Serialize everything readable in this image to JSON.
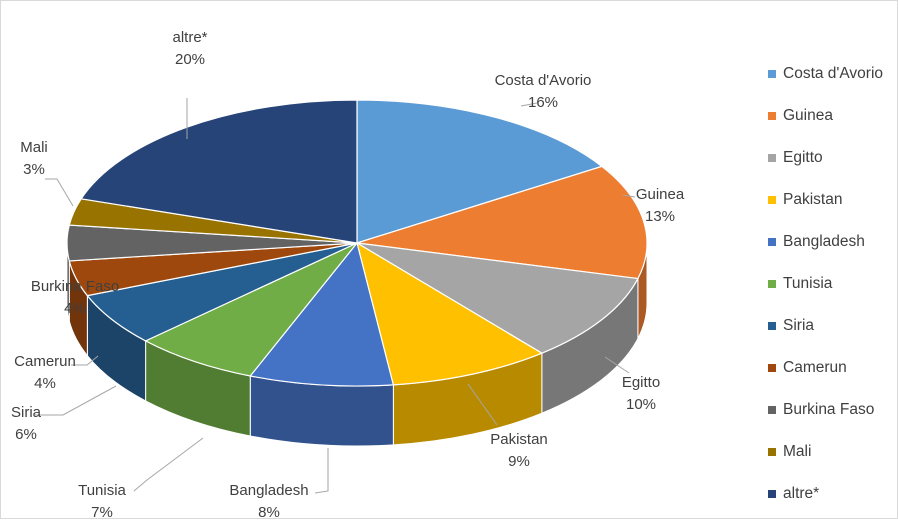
{
  "chart_data": {
    "type": "pie",
    "title": "",
    "categories": [
      "Costa d'Avorio",
      "Guinea",
      "Egitto",
      "Pakistan",
      "Bangladesh",
      "Tunisia",
      "Siria",
      "Camerun",
      "Burkina Faso",
      "Mali",
      "altre*"
    ],
    "values": [
      16,
      13,
      10,
      9,
      8,
      7,
      6,
      4,
      4,
      3,
      20
    ],
    "value_labels": [
      "16%",
      "13%",
      "10%",
      "9%",
      "8%",
      "7%",
      "6%",
      "4%",
      "4%",
      "3%",
      "20%"
    ],
    "colors": [
      "#5B9BD5",
      "#ED7D31",
      "#A5A5A5",
      "#FFC000",
      "#4472C4",
      "#70AD47",
      "#255E91",
      "#9E480E",
      "#636363",
      "#997300",
      "#264478"
    ],
    "legend_position": "right",
    "style": "3d-pie"
  }
}
